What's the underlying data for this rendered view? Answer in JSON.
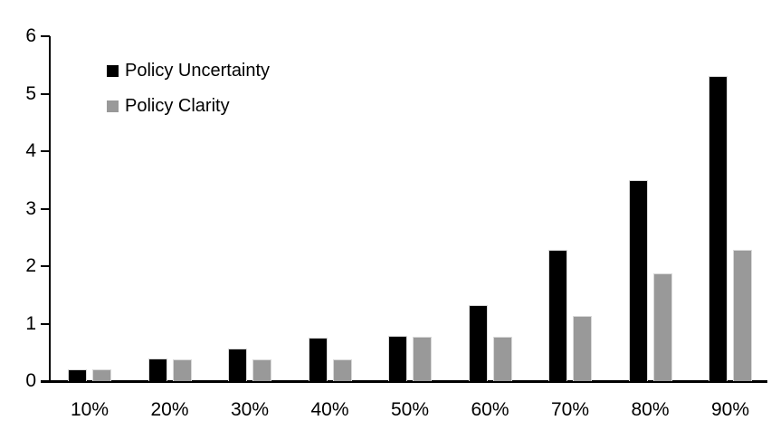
{
  "chart_data": {
    "type": "bar",
    "title": "",
    "xlabel": "",
    "ylabel": "",
    "categories": [
      "10%",
      "20%",
      "30%",
      "40%",
      "50%",
      "60%",
      "70%",
      "80%",
      "90%"
    ],
    "series": [
      {
        "name": "Policy Uncertainty",
        "color": "#000000",
        "values": [
          0.2,
          0.4,
          0.57,
          0.76,
          0.78,
          1.32,
          2.29,
          3.49,
          5.3
        ]
      },
      {
        "name": "Policy Clarity",
        "color": "#999999",
        "values": [
          0.2,
          0.38,
          0.38,
          0.38,
          0.77,
          0.77,
          1.13,
          1.88,
          2.28
        ]
      }
    ],
    "ylim": [
      0,
      6
    ],
    "ytick_step": 1,
    "yticks": [
      "0",
      "1",
      "2",
      "3",
      "4",
      "5",
      "6"
    ],
    "grid": false,
    "legend_position": "top-left"
  }
}
